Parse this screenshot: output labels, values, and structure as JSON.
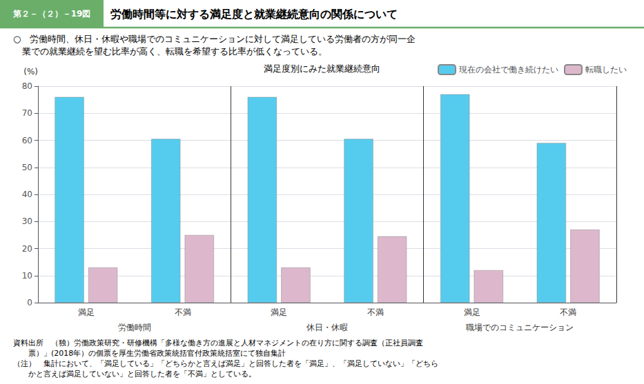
{
  "chart_data": {
    "type": "bar",
    "title": "満足度別にみた就業継続意向",
    "header": {
      "label": "第２－（２）－19図",
      "title": "労働時間等に対する満足度と就業継続意向の関係について",
      "color": "#6AAE6A"
    },
    "text": [
      "○　労働時間、休日・休暇や職場でのコミュニケーションに対して満足している労働者の方が同一企",
      "　業での就業継続を望む比率が高く、転職を希望する比率が低くなっている。"
    ],
    "source": [
      "資料出所　（独）労働政策研究・研修機構「多様な働き方の進展と人材マネジメントの在り方に関する調査（正社員調査",
      "　　票）」(2018年）の個票を厚生労働省政策統括官付政策統括室にて独自集計",
      "（注）　集計において、「満足している」「どちらかと言えば満足」と回答した者を「満足」、「満足していない」「どちら",
      "　　かと言えば満足していない」と回答した者を「不満」としている。"
    ],
    "groups": [
      "労働時間",
      "休日・休暇",
      "職場でのコミュニケーション"
    ],
    "categories": [
      "満足",
      "不満",
      "満足",
      "不満",
      "満足",
      "不満"
    ],
    "series": [
      {
        "name": "現在の会社で働き続けたい",
        "color": "#55CCEE",
        "values": [
          76.0,
          60.5,
          76.0,
          60.5,
          77.0,
          59.0
        ]
      },
      {
        "name": "転職したい",
        "color": "#DDB8CC",
        "values": [
          13.0,
          25.0,
          13.0,
          24.5,
          12.0,
          27.0
        ]
      }
    ],
    "ylabel": "(%)",
    "ylim": [
      0,
      80
    ],
    "yticks": [
      0,
      10,
      20,
      30,
      40,
      50,
      60,
      70,
      80
    ],
    "grid": true,
    "legend": "upper right"
  }
}
